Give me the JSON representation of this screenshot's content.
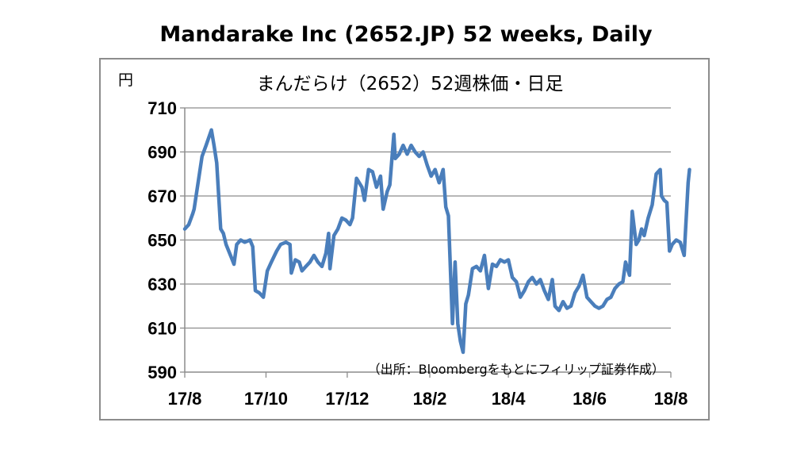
{
  "page": {
    "outer_title": "Mandarake Inc (2652.JP) 52 weeks, Daily"
  },
  "chart_data": {
    "type": "line",
    "title": "まんだらけ（2652）52週株価・日足",
    "ylabel": "円",
    "source_note": "（出所：Bloombergをもとにフィリップ証券作成）",
    "ylim": [
      590,
      710
    ],
    "yticks": [
      590,
      610,
      630,
      650,
      670,
      690,
      710
    ],
    "x_date_range": [
      "2017-08-01",
      "2018-08-01"
    ],
    "xticks": [
      {
        "date": "2017-08-01",
        "label": "17/8"
      },
      {
        "date": "2017-10-01",
        "label": "17/10"
      },
      {
        "date": "2017-12-01",
        "label": "17/12"
      },
      {
        "date": "2018-02-01",
        "label": "18/2"
      },
      {
        "date": "2018-04-01",
        "label": "18/4"
      },
      {
        "date": "2018-06-01",
        "label": "18/6"
      },
      {
        "date": "2018-08-01",
        "label": "18/8"
      }
    ],
    "grid": true,
    "line_color": "#4a7ebb",
    "series": [
      {
        "points": [
          [
            "2017-08-01",
            655
          ],
          [
            "2017-08-04",
            657
          ],
          [
            "2017-08-07",
            662
          ],
          [
            "2017-08-08",
            664
          ],
          [
            "2017-08-11",
            676
          ],
          [
            "2017-08-14",
            688
          ],
          [
            "2017-08-17",
            693
          ],
          [
            "2017-08-21",
            700
          ],
          [
            "2017-08-23",
            693
          ],
          [
            "2017-08-25",
            685
          ],
          [
            "2017-08-28",
            655
          ],
          [
            "2017-08-30",
            653
          ],
          [
            "2017-09-01",
            648
          ],
          [
            "2017-09-05",
            642
          ],
          [
            "2017-09-07",
            639
          ],
          [
            "2017-09-09",
            648
          ],
          [
            "2017-09-12",
            650
          ],
          [
            "2017-09-15",
            649
          ],
          [
            "2017-09-19",
            650
          ],
          [
            "2017-09-21",
            647
          ],
          [
            "2017-09-23",
            627
          ],
          [
            "2017-09-26",
            626
          ],
          [
            "2017-09-29",
            624
          ],
          [
            "2017-10-02",
            636
          ],
          [
            "2017-10-05",
            640
          ],
          [
            "2017-10-09",
            645
          ],
          [
            "2017-10-12",
            648
          ],
          [
            "2017-10-16",
            649
          ],
          [
            "2017-10-19",
            648
          ],
          [
            "2017-10-20",
            635
          ],
          [
            "2017-10-23",
            641
          ],
          [
            "2017-10-26",
            640
          ],
          [
            "2017-10-28",
            636
          ],
          [
            "2017-10-31",
            638
          ],
          [
            "2017-11-03",
            640
          ],
          [
            "2017-11-06",
            643
          ],
          [
            "2017-11-09",
            640
          ],
          [
            "2017-11-12",
            638
          ],
          [
            "2017-11-15",
            644
          ],
          [
            "2017-11-17",
            653
          ],
          [
            "2017-11-18",
            637
          ],
          [
            "2017-11-21",
            652
          ],
          [
            "2017-11-24",
            655
          ],
          [
            "2017-11-27",
            660
          ],
          [
            "2017-11-30",
            659
          ],
          [
            "2017-12-03",
            657
          ],
          [
            "2017-12-05",
            660
          ],
          [
            "2017-12-08",
            678
          ],
          [
            "2017-12-12",
            674
          ],
          [
            "2017-12-14",
            668
          ],
          [
            "2017-12-17",
            682
          ],
          [
            "2017-12-20",
            681
          ],
          [
            "2017-12-23",
            674
          ],
          [
            "2017-12-26",
            679
          ],
          [
            "2017-12-28",
            664
          ],
          [
            "2017-12-31",
            672
          ],
          [
            "2018-01-02",
            675
          ],
          [
            "2018-01-05",
            698
          ],
          [
            "2018-01-06",
            687
          ],
          [
            "2018-01-09",
            689
          ],
          [
            "2018-01-12",
            693
          ],
          [
            "2018-01-15",
            689
          ],
          [
            "2018-01-18",
            693
          ],
          [
            "2018-01-21",
            690
          ],
          [
            "2018-01-24",
            688
          ],
          [
            "2018-01-27",
            690
          ],
          [
            "2018-01-30",
            684
          ],
          [
            "2018-02-02",
            679
          ],
          [
            "2018-02-05",
            682
          ],
          [
            "2018-02-08",
            676
          ],
          [
            "2018-02-11",
            682
          ],
          [
            "2018-02-13",
            665
          ],
          [
            "2018-02-15",
            661
          ],
          [
            "2018-02-18",
            612
          ],
          [
            "2018-02-20",
            640
          ],
          [
            "2018-02-22",
            612
          ],
          [
            "2018-02-24",
            604
          ],
          [
            "2018-02-26",
            599
          ],
          [
            "2018-02-28",
            621
          ],
          [
            "2018-03-02",
            625
          ],
          [
            "2018-03-05",
            637
          ],
          [
            "2018-03-08",
            638
          ],
          [
            "2018-03-11",
            636
          ],
          [
            "2018-03-14",
            643
          ],
          [
            "2018-03-17",
            628
          ],
          [
            "2018-03-20",
            639
          ],
          [
            "2018-03-23",
            638
          ],
          [
            "2018-03-26",
            641
          ],
          [
            "2018-03-29",
            640
          ],
          [
            "2018-04-01",
            641
          ],
          [
            "2018-04-04",
            633
          ],
          [
            "2018-04-07",
            631
          ],
          [
            "2018-04-10",
            624
          ],
          [
            "2018-04-13",
            627
          ],
          [
            "2018-04-16",
            631
          ],
          [
            "2018-04-19",
            633
          ],
          [
            "2018-04-22",
            630
          ],
          [
            "2018-04-25",
            632
          ],
          [
            "2018-04-28",
            627
          ],
          [
            "2018-05-01",
            623
          ],
          [
            "2018-05-04",
            632
          ],
          [
            "2018-05-06",
            620
          ],
          [
            "2018-05-09",
            618
          ],
          [
            "2018-05-12",
            622
          ],
          [
            "2018-05-15",
            619
          ],
          [
            "2018-05-18",
            620
          ],
          [
            "2018-05-21",
            626
          ],
          [
            "2018-05-24",
            629
          ],
          [
            "2018-05-27",
            634
          ],
          [
            "2018-05-30",
            624
          ],
          [
            "2018-06-02",
            622
          ],
          [
            "2018-06-05",
            620
          ],
          [
            "2018-06-08",
            619
          ],
          [
            "2018-06-11",
            620
          ],
          [
            "2018-06-14",
            623
          ],
          [
            "2018-06-17",
            624
          ],
          [
            "2018-06-20",
            628
          ],
          [
            "2018-06-23",
            630
          ],
          [
            "2018-06-26",
            631
          ],
          [
            "2018-06-28",
            640
          ],
          [
            "2018-07-01",
            634
          ],
          [
            "2018-07-03",
            663
          ],
          [
            "2018-07-06",
            648
          ],
          [
            "2018-07-08",
            650
          ],
          [
            "2018-07-10",
            655
          ],
          [
            "2018-07-12",
            652
          ],
          [
            "2018-07-15",
            660
          ],
          [
            "2018-07-18",
            666
          ],
          [
            "2018-07-21",
            680
          ],
          [
            "2018-07-24",
            682
          ],
          [
            "2018-07-25",
            670
          ],
          [
            "2018-07-27",
            668
          ],
          [
            "2018-07-29",
            667
          ],
          [
            "2018-07-31",
            645
          ],
          [
            "2018-08-02",
            648
          ],
          [
            "2018-08-05",
            650
          ],
          [
            "2018-08-08",
            649
          ],
          [
            "2018-08-11",
            643
          ],
          [
            "2018-08-14",
            676
          ],
          [
            "2018-08-15",
            682
          ]
        ]
      }
    ]
  }
}
